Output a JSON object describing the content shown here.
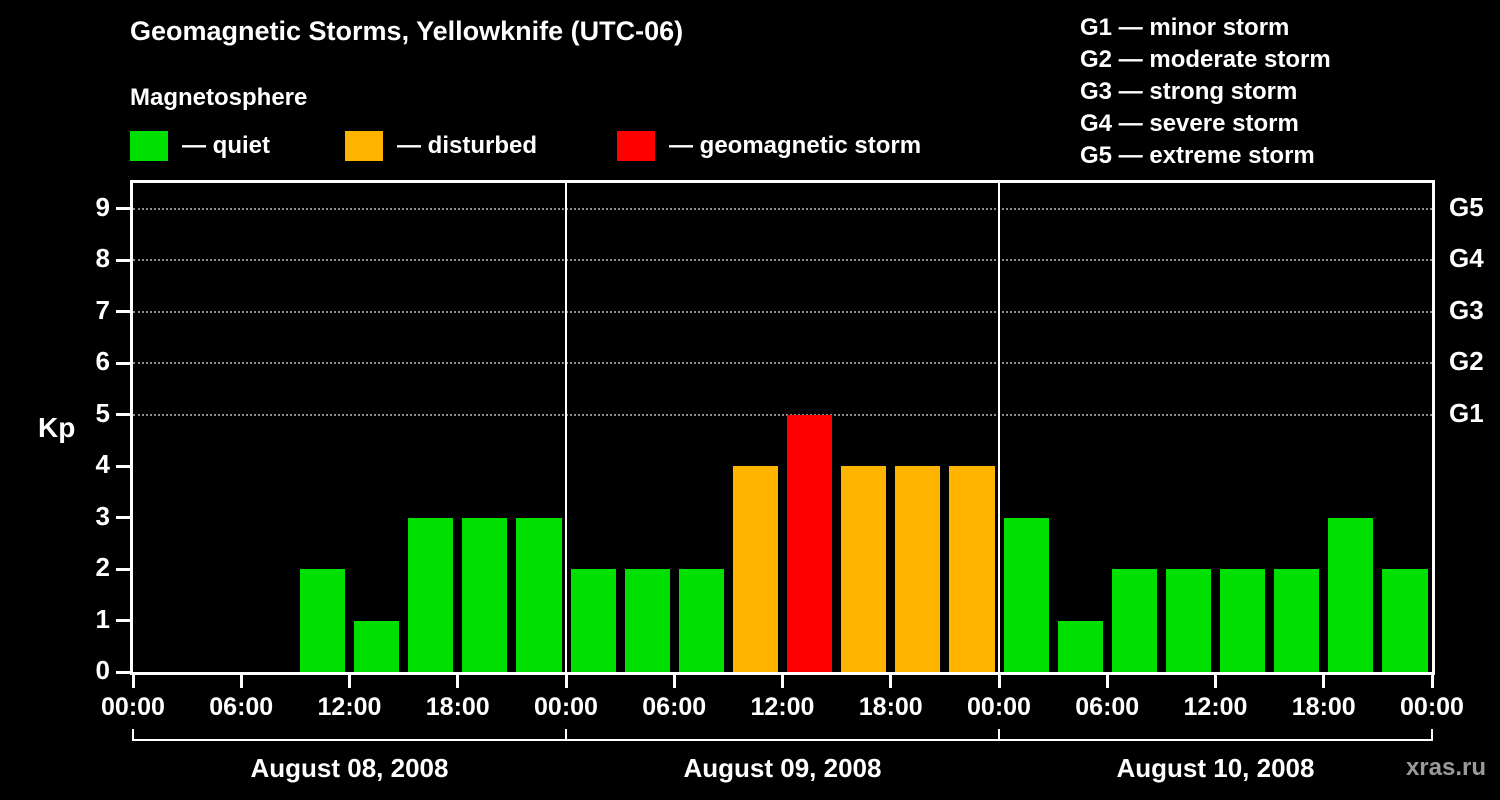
{
  "title": "Geomagnetic Storms, Yellowknife (UTC-06)",
  "subtitle": "Magnetosphere",
  "watermark": "xras.ru",
  "legend": {
    "quiet": {
      "label": "— quiet",
      "color": "#00e000"
    },
    "disturbed": {
      "label": "— disturbed",
      "color": "#ffb400"
    },
    "storm": {
      "label": "— geomagnetic storm",
      "color": "#ff0000"
    }
  },
  "g_scale": [
    "G1 — minor storm",
    "G2 — moderate storm",
    "G3 — strong storm",
    "G4 — severe storm",
    "G5 — extreme storm"
  ],
  "chart_data": {
    "type": "bar",
    "title": "Geomagnetic Storms, Yellowknife (UTC-06)",
    "ylabel": "Kp",
    "ylim": [
      0,
      9.5
    ],
    "yticks": [
      0,
      1,
      2,
      3,
      4,
      5,
      6,
      7,
      8,
      9
    ],
    "gridline_kp": [
      5,
      6,
      7,
      8,
      9
    ],
    "right_labels": [
      {
        "kp": 5,
        "label": "G1"
      },
      {
        "kp": 6,
        "label": "G2"
      },
      {
        "kp": 7,
        "label": "G3"
      },
      {
        "kp": 8,
        "label": "G4"
      },
      {
        "kp": 9,
        "label": "G5"
      }
    ],
    "x_tick_labels": [
      "00:00",
      "06:00",
      "12:00",
      "18:00",
      "00:00",
      "06:00",
      "12:00",
      "18:00",
      "00:00",
      "06:00",
      "12:00",
      "18:00",
      "00:00"
    ],
    "interval_hours": 3,
    "days": [
      {
        "date": "August 08, 2008",
        "values": [
          0,
          0,
          0,
          2,
          1,
          3,
          3,
          3
        ]
      },
      {
        "date": "August 09, 2008",
        "values": [
          2,
          2,
          2,
          4,
          5,
          4,
          4,
          4
        ]
      },
      {
        "date": "August 10, 2008",
        "values": [
          3,
          1,
          2,
          2,
          2,
          2,
          3,
          2
        ]
      }
    ],
    "thresholds": {
      "disturbed_min": 4,
      "storm_min": 5
    },
    "grid": "horizontal-dotted",
    "legend_position": "top"
  }
}
